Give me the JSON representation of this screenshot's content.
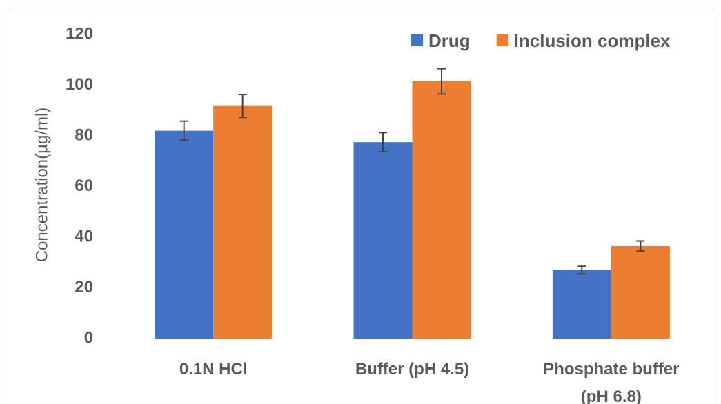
{
  "chart_data": {
    "type": "bar",
    "title": "",
    "xlabel": "",
    "ylabel": "Concentration(µg/ml)",
    "ylim": [
      0,
      120
    ],
    "yticks": [
      "0",
      "20",
      "40",
      "60",
      "80",
      "100",
      "120"
    ],
    "categories": [
      [
        "0.1N HCl"
      ],
      [
        "Buffer (pH 4.5)"
      ],
      [
        "Phosphate buffer",
        "(pH 6.8)"
      ]
    ],
    "series": [
      {
        "name": "Drug",
        "color": "#4472c4",
        "values": [
          82,
          77.5,
          27
        ],
        "errors": [
          3.8,
          3.8,
          1.5
        ]
      },
      {
        "name": "Inclusion complex",
        "color": "#ed7d31",
        "values": [
          91.8,
          101.5,
          36.5
        ],
        "errors": [
          4.5,
          5,
          2
        ]
      }
    ],
    "legend_position": "top-right",
    "grid": false,
    "error_bars": true
  }
}
